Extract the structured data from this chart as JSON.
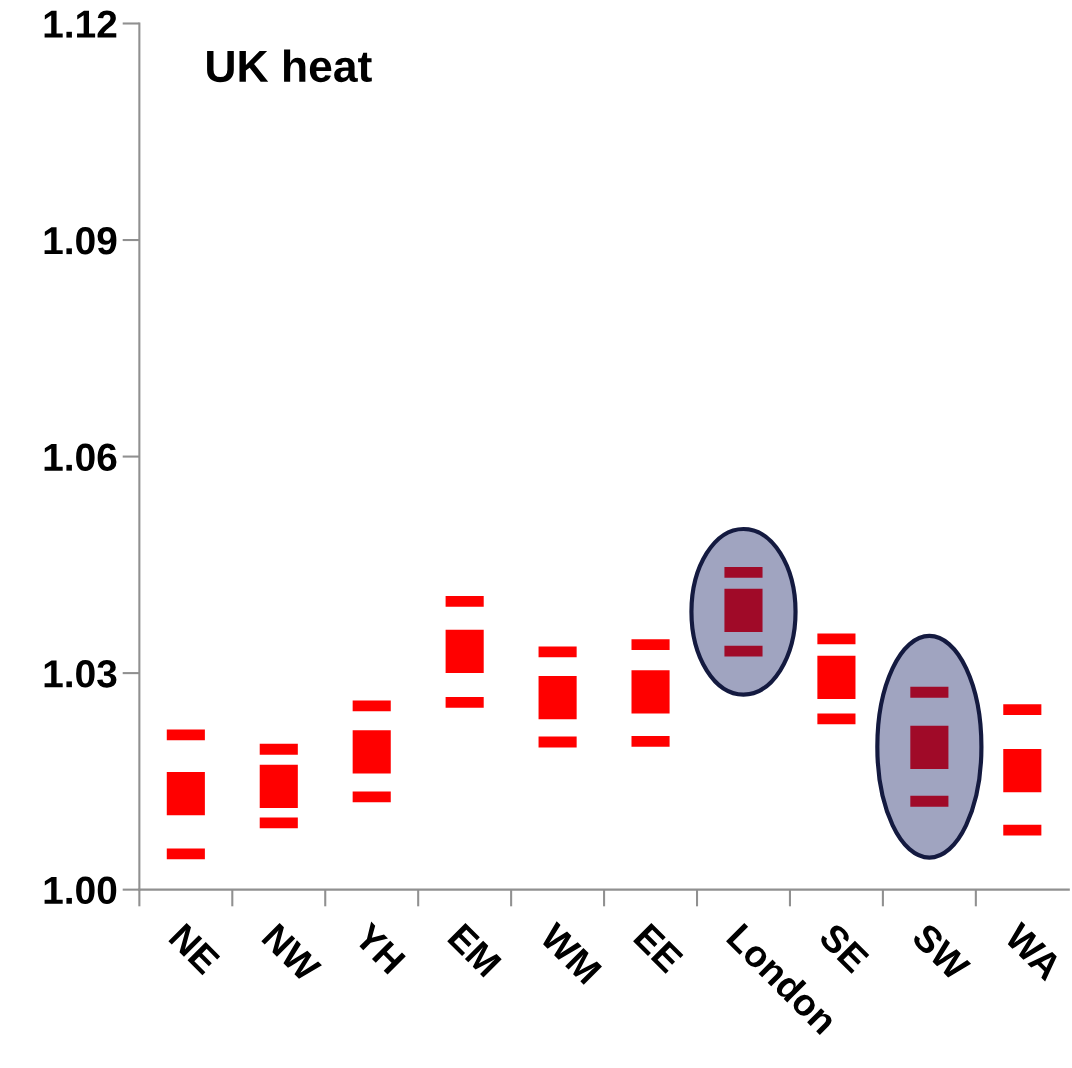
{
  "chart_data": {
    "type": "bar",
    "title": "UK heat",
    "categories": [
      "NE",
      "NW",
      "YH",
      "EM",
      "WM",
      "EE",
      "London",
      "SE",
      "SW",
      "WA"
    ],
    "series": [
      {
        "color": "#ff0000",
        "colors": [
          "#ff0000",
          "#ff0000",
          "#ff0000",
          "#ff0000",
          "#ff0000",
          "#ff0000",
          "#a00a28",
          "#ff0000",
          "#a00a28",
          "#ff0000"
        ],
        "base": [
          1.0207,
          1.0187,
          1.0247,
          1.0392,
          1.0322,
          1.0332,
          1.0432,
          1.034,
          1.0266,
          1.0242
        ],
        "values": [
          0.0015,
          0.0015,
          0.0015,
          0.0015,
          0.0015,
          0.0015,
          0.0015,
          0.0015,
          0.0015,
          0.0015
        ]
      },
      {
        "color": "#ff0000",
        "colors": [
          "#ff0000",
          "#ff0000",
          "#ff0000",
          "#ff0000",
          "#ff0000",
          "#ff0000",
          "#a00a28",
          "#ff0000",
          "#a00a28",
          "#ff0000"
        ],
        "base": [
          1.0103,
          1.0113,
          1.0161,
          1.03,
          1.0236,
          1.0244,
          1.0357,
          1.0264,
          1.0167,
          1.0135
        ],
        "values": [
          0.006,
          0.006,
          0.006,
          0.006,
          0.006,
          0.006,
          0.006,
          0.006,
          0.006,
          0.006
        ]
      },
      {
        "color": "#ff0000",
        "colors": [
          "#ff0000",
          "#ff0000",
          "#ff0000",
          "#ff0000",
          "#ff0000",
          "#ff0000",
          "#a00a28",
          "#ff0000",
          "#a00a28",
          "#ff0000"
        ],
        "base": [
          1.0042,
          1.0085,
          1.0121,
          1.0252,
          1.0197,
          1.0198,
          1.0323,
          1.0229,
          1.0115,
          1.0075
        ],
        "values": [
          0.0015,
          0.0015,
          0.0015,
          0.0015,
          0.0015,
          0.0015,
          0.0015,
          0.0015,
          0.0015,
          0.0015
        ]
      }
    ],
    "ylim": [
      1.0,
      1.12
    ],
    "yticks": [
      {
        "value": 1.0,
        "label": "1.00"
      },
      1.03,
      1.06,
      1.09,
      1.12
    ],
    "grid": false,
    "legend": false
  }
}
